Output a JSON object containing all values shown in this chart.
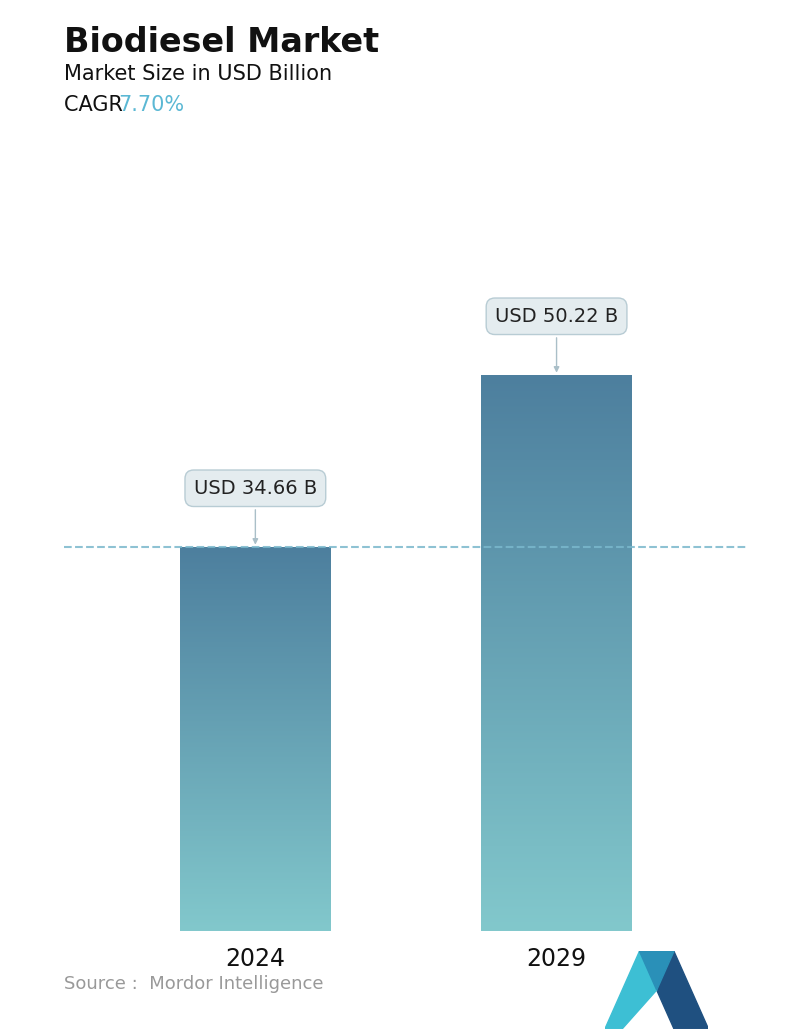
{
  "title": "Biodiesel Market",
  "subtitle": "Market Size in USD Billion",
  "cagr_label": "CAGR ",
  "cagr_value": "7.70%",
  "cagr_color": "#5bb8d4",
  "categories": [
    "2024",
    "2029"
  ],
  "values": [
    34.66,
    50.22
  ],
  "bar_labels": [
    "USD 34.66 B",
    "USD 50.22 B"
  ],
  "bar_color_top": "#4d7f9e",
  "bar_color_bottom": "#82c8cc",
  "dashed_line_color": "#7ab8cc",
  "dashed_line_value": 34.66,
  "source_text": "Source :  Mordor Intelligence",
  "source_color": "#999999",
  "background_color": "#ffffff",
  "title_fontsize": 24,
  "subtitle_fontsize": 15,
  "cagr_fontsize": 15,
  "bar_label_fontsize": 14,
  "xlabel_fontsize": 17,
  "source_fontsize": 13,
  "ylim": [
    0,
    58
  ],
  "bar_width": 0.22,
  "x_positions": [
    0.28,
    0.72
  ]
}
